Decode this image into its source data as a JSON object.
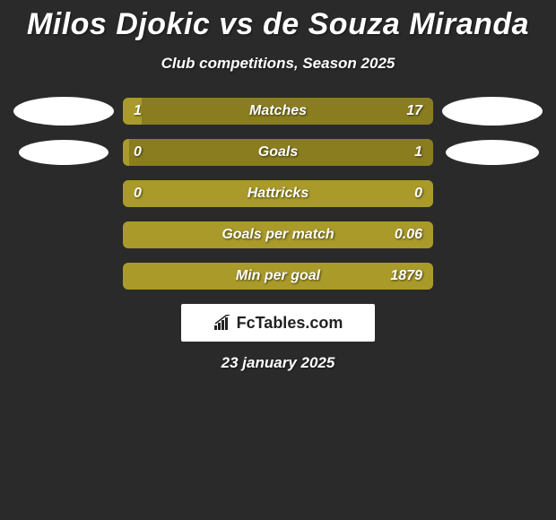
{
  "title": "Milos Djokic vs de Souza Miranda",
  "title_fontsize": 34,
  "subtitle": "Club competitions, Season 2025",
  "subtitle_fontsize": 17,
  "date": "23 january 2025",
  "date_fontsize": 17,
  "colors": {
    "background": "#2a2a2a",
    "left_fill": "#a99a2a",
    "right_fill": "#a99a2a",
    "neutral_fill": "#a99a2a",
    "text": "#ffffff"
  },
  "bar_value_fontsize": 16,
  "bar_label_fontsize": 16,
  "rows": [
    {
      "label": "Matches",
      "left": "1",
      "right": "17",
      "left_pct": 6,
      "right_pct": 94,
      "left_color": "#a99a2a",
      "right_color": "#8a7d20",
      "show_left_photo": true,
      "show_right_photo": true,
      "left_photo_w": 112,
      "left_photo_h": 32,
      "right_photo_w": 112,
      "right_photo_h": 32
    },
    {
      "label": "Goals",
      "left": "0",
      "right": "1",
      "left_pct": 2,
      "right_pct": 98,
      "left_color": "#a99a2a",
      "right_color": "#8a7d20",
      "show_left_photo": true,
      "show_right_photo": true,
      "left_photo_w": 100,
      "left_photo_h": 28,
      "right_photo_w": 104,
      "right_photo_h": 28
    },
    {
      "label": "Hattricks",
      "left": "0",
      "right": "0",
      "left_pct": 50,
      "right_pct": 50,
      "left_color": "#a99a2a",
      "right_color": "#a99a2a",
      "show_left_photo": false,
      "show_right_photo": false
    },
    {
      "label": "Goals per match",
      "left": "",
      "right": "0.06",
      "left_pct": 0,
      "right_pct": 100,
      "left_color": "#a99a2a",
      "right_color": "#a99a2a",
      "show_left_photo": false,
      "show_right_photo": false
    },
    {
      "label": "Min per goal",
      "left": "",
      "right": "1879",
      "left_pct": 0,
      "right_pct": 100,
      "left_color": "#a99a2a",
      "right_color": "#a99a2a",
      "show_left_photo": false,
      "show_right_photo": false
    }
  ],
  "logo": {
    "text": "FcTables.com",
    "icon": "chart-icon"
  }
}
